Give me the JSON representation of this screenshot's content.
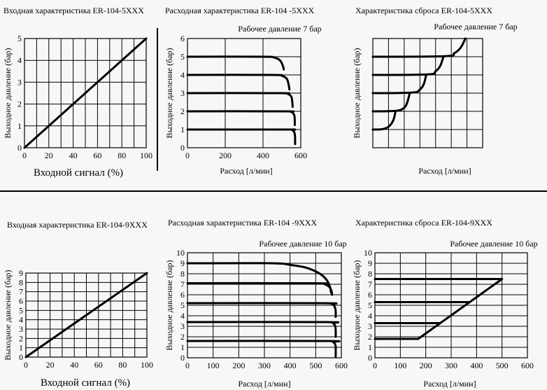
{
  "colors": {
    "line": "#000000",
    "grid": "#000000",
    "background": "#f7f7f7"
  },
  "chart_data": [
    {
      "id": "c1",
      "type": "line",
      "title": "Входная характеристика ER-104-5XXX",
      "subtitle": "",
      "xlabel": "Входной сигнал (%)",
      "ylabel": "Выходное давление (бар)",
      "xlim": [
        0,
        100
      ],
      "ylim": [
        0,
        5
      ],
      "xticks": [
        0,
        20,
        40,
        60,
        80,
        100
      ],
      "yticks": [
        0,
        1,
        2,
        3,
        4,
        5
      ],
      "xtick_labels": [
        "0",
        "20",
        "40",
        "60",
        "80",
        "100"
      ],
      "ytick_labels": [
        "0",
        "1",
        "2",
        "3",
        "4",
        "5"
      ],
      "grid": true,
      "legend": "none",
      "series": [
        {
          "x": [
            0,
            100
          ],
          "y": [
            0,
            5
          ]
        }
      ]
    },
    {
      "id": "c2",
      "type": "line",
      "title": "Расходная характеристика ER-104 -5XXX",
      "subtitle": "Рабочее давление 7 бар",
      "xlabel": "Расход [л/мин]",
      "ylabel": "Выходное давление (бар)",
      "xlim": [
        0,
        600
      ],
      "ylim": [
        0,
        6
      ],
      "xticks": [
        0,
        200,
        400,
        600
      ],
      "yticks": [
        0,
        1,
        2,
        3,
        4,
        5,
        6
      ],
      "xtick_labels": [
        "0",
        "200",
        "400",
        "600"
      ],
      "ytick_labels": [
        "0",
        "1",
        "2",
        "3",
        "4",
        "5",
        "6"
      ],
      "grid": true,
      "legend": "none",
      "series": [
        {
          "x": [
            0,
            400,
            460,
            490,
            505,
            510
          ],
          "y": [
            5,
            5,
            4.95,
            4.8,
            4.5,
            4.3
          ]
        },
        {
          "x": [
            0,
            450,
            500,
            525,
            535,
            540
          ],
          "y": [
            4,
            4,
            3.95,
            3.8,
            3.5,
            3.2
          ]
        },
        {
          "x": [
            0,
            490,
            530,
            550,
            555,
            557
          ],
          "y": [
            3,
            3,
            2.96,
            2.8,
            2.5,
            2.25
          ]
        },
        {
          "x": [
            0,
            510,
            550,
            565,
            568,
            568
          ],
          "y": [
            2,
            2,
            1.96,
            1.8,
            1.5,
            1.25
          ]
        },
        {
          "x": [
            0,
            520,
            555,
            567,
            570,
            570
          ],
          "y": [
            1,
            1,
            0.97,
            0.8,
            0.5,
            0.2
          ]
        }
      ]
    },
    {
      "id": "c3",
      "type": "line",
      "title": "Характеристика сброса ER-104-5XXX",
      "subtitle": "Рабочее давление 7 бар",
      "xlabel": "Расход [л/мин]",
      "ylabel": "Выходное давление (бар)",
      "xlim": [
        0,
        7
      ],
      "ylim": [
        0,
        6
      ],
      "xticks": [],
      "yticks": [],
      "xtick_labels": [],
      "ytick_labels": [],
      "grid": true,
      "grid_cols": 7,
      "grid_rows": 6,
      "legend": "none",
      "series": [
        {
          "x": [
            0,
            0.6,
            1.0,
            1.3,
            1.45
          ],
          "y": [
            1,
            1.02,
            1.15,
            1.5,
            2.0
          ]
        },
        {
          "x": [
            0,
            1.5,
            2.0,
            2.2,
            2.35
          ],
          "y": [
            2,
            2.03,
            2.2,
            2.5,
            3.0
          ]
        },
        {
          "x": [
            0,
            2.5,
            3.0,
            3.25,
            3.4
          ],
          "y": [
            3,
            3.03,
            3.2,
            3.5,
            4.0
          ]
        },
        {
          "x": [
            0,
            3.5,
            4.0,
            4.3,
            4.5
          ],
          "y": [
            4,
            4.03,
            4.2,
            4.5,
            5.0
          ]
        },
        {
          "x": [
            0,
            4.6,
            5.2,
            5.6,
            5.9
          ],
          "y": [
            5,
            5.03,
            5.2,
            5.5,
            6.0
          ]
        }
      ]
    },
    {
      "id": "c4",
      "type": "line",
      "title": "Входная характеристика ER-104-9XXX",
      "subtitle": "",
      "xlabel": "Входной сигнал (%)",
      "ylabel": "Выходное давление (бар)",
      "xlim": [
        0,
        100
      ],
      "ylim": [
        0,
        9
      ],
      "xticks": [
        0,
        20,
        40,
        60,
        80,
        100
      ],
      "yticks": [
        0,
        1,
        2,
        3,
        4,
        5,
        6,
        7,
        8,
        9
      ],
      "xtick_labels": [
        "0",
        "20",
        "40",
        "60",
        "80",
        "100"
      ],
      "ytick_labels": [
        "0",
        "1",
        "2",
        "3",
        "4",
        "5",
        "6",
        "7",
        "8",
        "9"
      ],
      "grid": true,
      "legend": "none",
      "series": [
        {
          "x": [
            0,
            100
          ],
          "y": [
            0,
            9
          ]
        }
      ]
    },
    {
      "id": "c5",
      "type": "line",
      "title": "Расходная характеристика ER-104 -9XXX",
      "subtitle": "Рабочее давление 10 бар",
      "xlabel": "Расход [л/мин]",
      "ylabel": "Выходное давление (бар)",
      "xlim": [
        0,
        600
      ],
      "ylim": [
        0,
        10
      ],
      "xticks": [
        0,
        100,
        200,
        300,
        400,
        500,
        600
      ],
      "yticks": [
        0,
        1,
        2,
        3,
        4,
        5,
        6,
        7,
        8,
        9,
        10
      ],
      "xtick_labels": [
        "0",
        "100",
        "200",
        "300",
        "400",
        "500",
        "600"
      ],
      "ytick_labels": [
        "0",
        "1",
        "2",
        "3",
        "4",
        "5",
        "6",
        "7",
        "8",
        "9",
        "10"
      ],
      "grid": true,
      "legend": "none",
      "series": [
        {
          "x": [
            0,
            330,
            400,
            460,
            510,
            540,
            555,
            560
          ],
          "y": [
            9,
            9,
            8.85,
            8.6,
            8.1,
            7.5,
            6.8,
            6.2
          ]
        },
        {
          "x": [
            0,
            490,
            535,
            555,
            562,
            564
          ],
          "y": [
            7.1,
            7.1,
            7.0,
            6.7,
            6.3,
            6.0
          ]
        },
        {
          "x": [
            0,
            530,
            565,
            575,
            578,
            578
          ],
          "y": [
            5.2,
            5.2,
            5.1,
            4.8,
            4.4,
            3.9
          ]
        },
        {
          "x": [
            0,
            540,
            567,
            576,
            578,
            578
          ],
          "y": [
            3.4,
            3.4,
            3.3,
            3.0,
            2.5,
            2.0
          ]
        },
        {
          "x": [
            0,
            545,
            568,
            577,
            578,
            578
          ],
          "y": [
            1.6,
            1.6,
            1.5,
            1.2,
            0.7,
            0.1
          ]
        }
      ]
    },
    {
      "id": "c6",
      "type": "line",
      "title": "Характеристика сброса ER-104-9XXX",
      "subtitle": "Рабочее давление 10 бар",
      "xlabel": "Расход [л/мин]",
      "ylabel": "Выходное давление (бар)",
      "xlim": [
        0,
        600
      ],
      "ylim": [
        0,
        10
      ],
      "xticks": [
        0,
        100,
        200,
        300,
        400,
        500,
        600
      ],
      "yticks": [
        0,
        1,
        2,
        3,
        4,
        5,
        6,
        7,
        8,
        9,
        10
      ],
      "xtick_labels": [
        "0",
        "100",
        "200",
        "300",
        "400",
        "500",
        "600"
      ],
      "ytick_labels": [
        "0",
        "1",
        "2",
        "3",
        "4",
        "5",
        "6",
        "7",
        "8",
        "9",
        "10"
      ],
      "grid": true,
      "legend": "none",
      "series": [
        {
          "x": [
            0,
            500
          ],
          "y": [
            7.5,
            7.5
          ]
        },
        {
          "x": [
            0,
            370
          ],
          "y": [
            5.3,
            5.3
          ]
        },
        {
          "x": [
            0,
            255
          ],
          "y": [
            3.3,
            3.3
          ]
        },
        {
          "x": [
            0,
            170,
            500
          ],
          "y": [
            1.8,
            1.8,
            7.5
          ]
        }
      ]
    }
  ]
}
